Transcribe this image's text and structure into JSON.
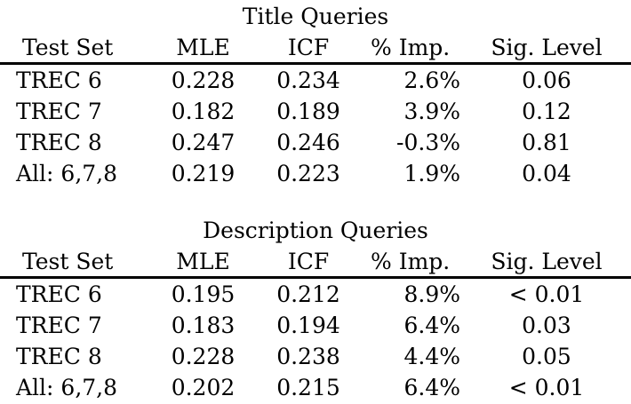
{
  "tables": [
    {
      "title": "Title Queries",
      "columns": [
        "Test Set",
        "MLE",
        "ICF",
        "% Imp.",
        "Sig. Level"
      ],
      "rows": [
        [
          "TREC 6",
          "0.228",
          "0.234",
          "2.6%",
          "0.06"
        ],
        [
          "TREC 7",
          "0.182",
          "0.189",
          "3.9%",
          "0.12"
        ],
        [
          "TREC 8",
          "0.247",
          "0.246",
          "-0.3%",
          "0.81"
        ],
        [
          "All: 6,7,8",
          "0.219",
          "0.223",
          "1.9%",
          "0.04"
        ]
      ]
    },
    {
      "title": "Description Queries",
      "columns": [
        "Test Set",
        "MLE",
        "ICF",
        "% Imp.",
        "Sig. Level"
      ],
      "rows": [
        [
          "TREC 6",
          "0.195",
          "0.212",
          "8.9%",
          "< 0.01"
        ],
        [
          "TREC 7",
          "0.183",
          "0.194",
          "6.4%",
          "0.03"
        ],
        [
          "TREC 8",
          "0.228",
          "0.238",
          "4.4%",
          "0.05"
        ],
        [
          "All: 6,7,8",
          "0.202",
          "0.215",
          "6.4%",
          "< 0.01"
        ]
      ]
    }
  ],
  "colors": {
    "text": "#000000",
    "background": "#ffffff",
    "rule": "#000000"
  }
}
